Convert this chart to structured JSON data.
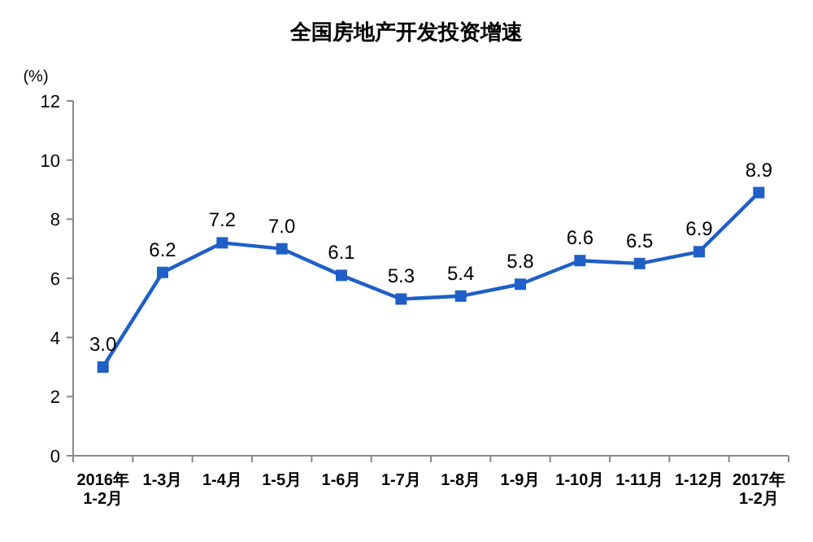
{
  "chart_data": {
    "type": "line",
    "title": "全国房地产开发投资增速",
    "ylabel": "(%)",
    "categories": [
      "2016年\n1-2月",
      "1-3月",
      "1-4月",
      "1-5月",
      "1-6月",
      "1-7月",
      "1-8月",
      "1-9月",
      "1-10月",
      "1-11月",
      "1-12月",
      "2017年\n1-2月"
    ],
    "series": [
      {
        "color": "#1f5fc7",
        "values": [
          3.0,
          6.2,
          7.2,
          7.0,
          6.1,
          5.3,
          5.4,
          5.8,
          6.6,
          6.5,
          6.9,
          8.9
        ],
        "value_labels": [
          "3.0",
          "6.2",
          "7.2",
          "7.0",
          "6.1",
          "5.3",
          "5.4",
          "5.8",
          "6.6",
          "6.5",
          "6.9",
          "8.9"
        ]
      }
    ],
    "ylim": [
      0,
      12
    ],
    "yticks": [
      0,
      2,
      4,
      6,
      8,
      10,
      12
    ],
    "marker": "square",
    "line_style": "solid",
    "grid": false
  }
}
